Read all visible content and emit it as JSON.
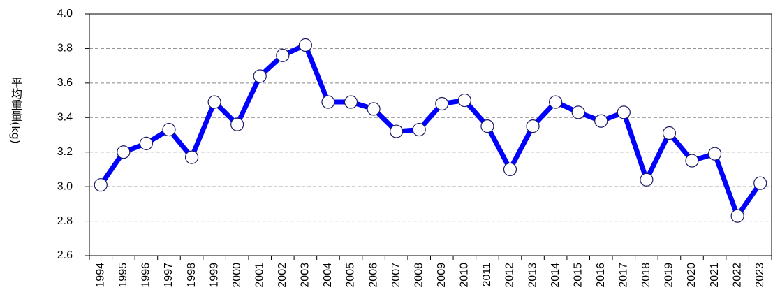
{
  "chart_data": {
    "type": "line",
    "y_label": "平均重量(kg)",
    "categories": [
      "1994",
      "1995",
      "1996",
      "1997",
      "1998",
      "1999",
      "2000",
      "2001",
      "2002",
      "2003",
      "2004",
      "2005",
      "2006",
      "2007",
      "2008",
      "2009",
      "2010",
      "2011",
      "2012",
      "2013",
      "2014",
      "2015",
      "2016",
      "2017",
      "2018",
      "2019",
      "2020",
      "2021",
      "2022",
      "2023"
    ],
    "values": [
      3.01,
      3.2,
      3.25,
      3.33,
      3.17,
      3.49,
      3.36,
      3.64,
      3.76,
      3.82,
      3.49,
      3.49,
      3.45,
      3.32,
      3.33,
      3.48,
      3.5,
      3.35,
      3.1,
      3.35,
      3.49,
      3.43,
      3.38,
      3.43,
      3.04,
      3.31,
      3.15,
      3.19,
      2.83,
      3.02
    ],
    "color": "#0000ff",
    "ylim": [
      2.6,
      4.0
    ],
    "yticks": [
      2.6,
      2.8,
      {
        "value": 3,
        "label": "3.0"
      },
      3.2,
      3.4,
      3.6,
      3.8,
      {
        "value": 4,
        "label": "4.0"
      }
    ],
    "grid": true
  }
}
